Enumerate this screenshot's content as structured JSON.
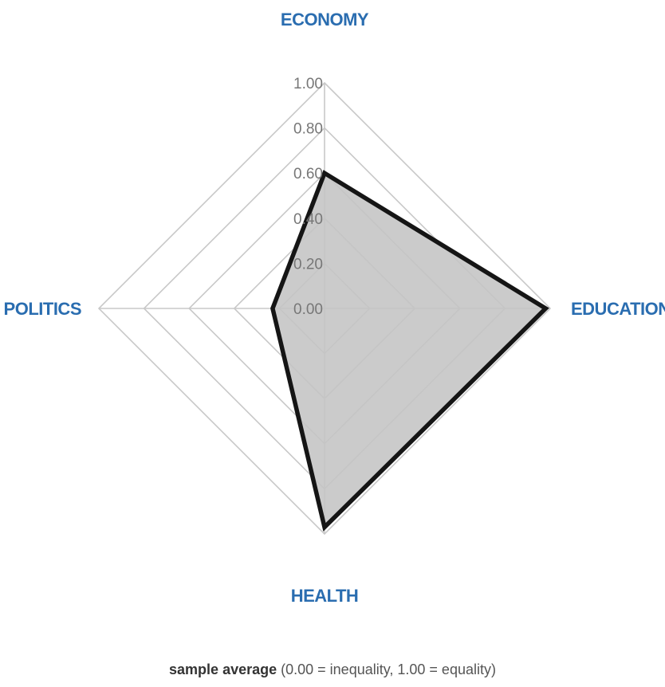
{
  "chart_data": {
    "type": "radar",
    "axes": [
      "ECONOMY",
      "EDUCATION",
      "HEALTH",
      "POLITICS"
    ],
    "series": [
      {
        "values": [
          0.6,
          0.98,
          0.97,
          0.23
        ]
      }
    ],
    "rlim": [
      0,
      1
    ],
    "ticks": [
      "0.00",
      "0.20",
      "0.40",
      "0.60",
      "0.80",
      "1.00"
    ],
    "grid": true,
    "colors": {
      "axis_label": "#2a6db0",
      "grid": "#c8c8c8",
      "fill": "#c4c4c4",
      "outline": "#151515",
      "tick": "#777777"
    }
  },
  "caption": {
    "strong": "sample average",
    "rest": " (0.00 = inequality, 1.00 = equality)"
  }
}
